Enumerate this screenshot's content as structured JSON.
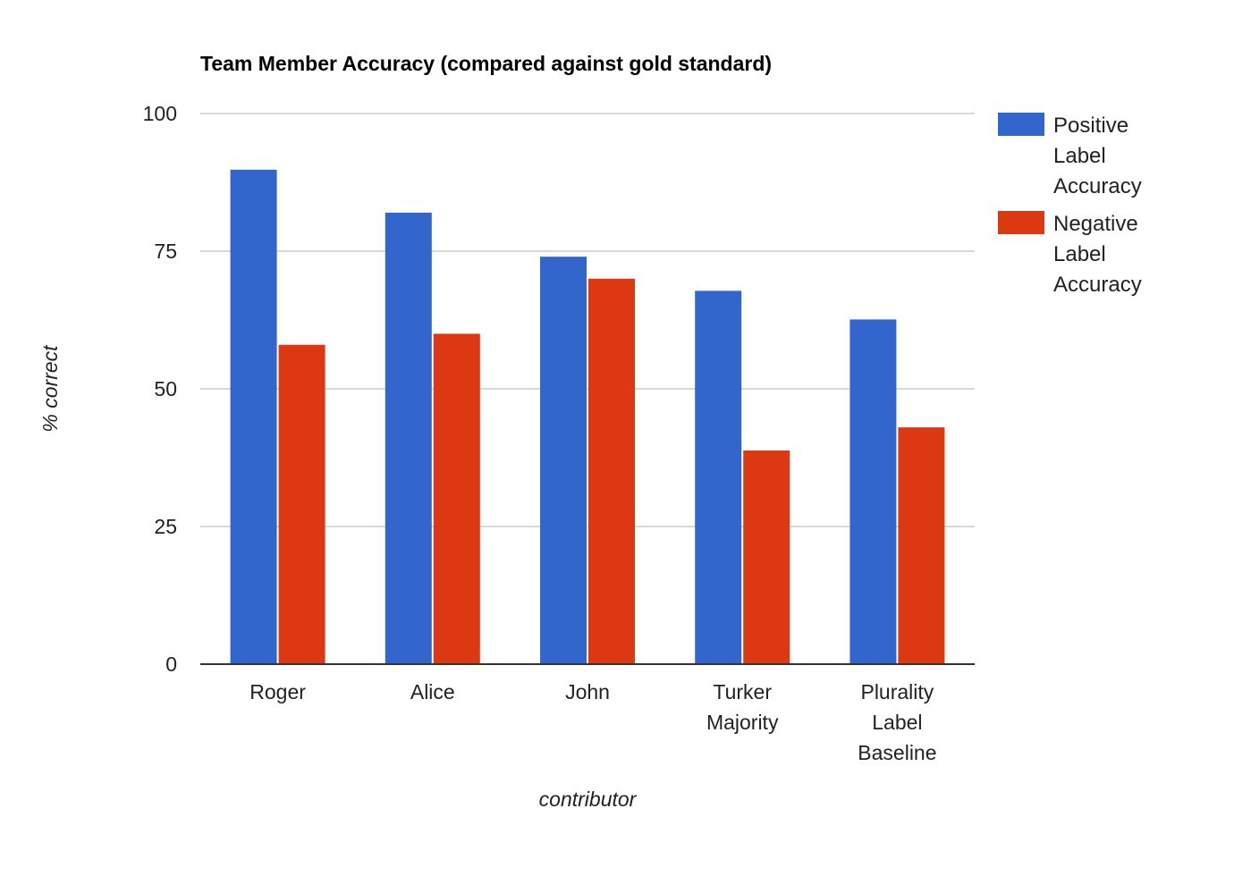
{
  "chart_data": {
    "type": "bar",
    "title": "Team Member Accuracy (compared against gold standard)",
    "xlabel": "contributor",
    "ylabel": "% correct",
    "ylim": [
      0,
      100
    ],
    "yticks": [
      0,
      25,
      50,
      75,
      100
    ],
    "grid": true,
    "legend_position": "right",
    "categories": [
      [
        "Roger"
      ],
      [
        "Alice"
      ],
      [
        "John"
      ],
      [
        "Turker",
        "Majority"
      ],
      [
        "Plurality",
        "Label",
        "Baseline"
      ]
    ],
    "series": [
      {
        "name": [
          "Positive",
          "Label",
          "Accuracy"
        ],
        "color": "#3366cc",
        "values": [
          89.8,
          82,
          74,
          67.8,
          62.6
        ]
      },
      {
        "name": [
          "Negative",
          "Label",
          "Accuracy"
        ],
        "color": "#dc3912",
        "values": [
          58,
          60,
          70,
          38.8,
          43
        ]
      }
    ]
  }
}
